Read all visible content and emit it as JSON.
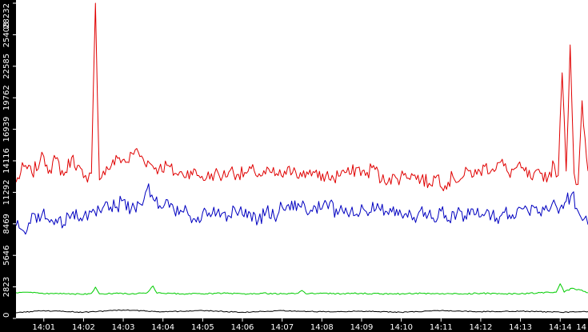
{
  "chart_data": {
    "type": "line",
    "title": "",
    "xlabel": "",
    "ylabel": "",
    "ylim": [
      0,
      28232
    ],
    "y_ticks": [
      0,
      2823,
      5646,
      8469,
      11292,
      14116,
      16939,
      19762,
      22585,
      25408,
      28232
    ],
    "x_ticks": [
      "14:01",
      "14:02",
      "14:03",
      "14:04",
      "14:05",
      "14:06",
      "14:07",
      "14:08",
      "14:09",
      "14:10",
      "14:11",
      "14:12",
      "14:13",
      "14:14",
      "14"
    ],
    "x_range_minutes": [
      0.3,
      14.7
    ],
    "grid": false,
    "legend": "none",
    "axis_background": "#000000",
    "axis_text_color": "#ffffff",
    "series": [
      {
        "color": "#e00000",
        "x": [
          0.3,
          0.5,
          0.7,
          0.9,
          1.0,
          1.15,
          1.3,
          1.5,
          1.7,
          1.85,
          2.0,
          2.1,
          2.2,
          2.3,
          2.4,
          2.5,
          2.7,
          2.9,
          3.1,
          3.3,
          3.5,
          3.7,
          3.9,
          4.1,
          4.3,
          4.5,
          4.7,
          4.9,
          5.1,
          5.3,
          5.5,
          5.7,
          5.9,
          6.1,
          6.3,
          6.5,
          6.7,
          6.9,
          7.1,
          7.3,
          7.5,
          7.7,
          7.9,
          8.1,
          8.3,
          8.5,
          8.7,
          8.9,
          9.1,
          9.3,
          9.5,
          9.7,
          9.9,
          10.1,
          10.3,
          10.5,
          10.7,
          10.9,
          11.1,
          11.3,
          11.5,
          11.7,
          11.9,
          12.1,
          12.3,
          12.5,
          12.7,
          12.9,
          13.1,
          13.3,
          13.5,
          13.7,
          13.85,
          13.95,
          14.05,
          14.15,
          14.25,
          14.35,
          14.45,
          14.55,
          14.7
        ],
        "values": [
          12200,
          13600,
          13000,
          14000,
          14500,
          13300,
          14300,
          12800,
          14400,
          13700,
          12600,
          12200,
          13000,
          28232,
          12400,
          13200,
          13700,
          14400,
          14000,
          15100,
          14300,
          13800,
          13400,
          13700,
          13000,
          12900,
          13200,
          12800,
          12600,
          13000,
          12700,
          13300,
          12900,
          13000,
          13200,
          12800,
          13100,
          12800,
          12900,
          13500,
          12700,
          13300,
          12600,
          12800,
          12500,
          13200,
          12900,
          13500,
          12800,
          13700,
          12300,
          12600,
          12500,
          13000,
          12800,
          12500,
          12100,
          12800,
          11900,
          12700,
          12500,
          13200,
          12900,
          13600,
          13400,
          14000,
          13000,
          13500,
          13200,
          12400,
          13000,
          12700,
          13800,
          12800,
          22000,
          13200,
          24500,
          13000,
          12000,
          19500,
          13200
        ]
      },
      {
        "color": "#0000c0",
        "x": [
          0.3,
          0.5,
          0.7,
          0.9,
          1.0,
          1.15,
          1.3,
          1.5,
          1.7,
          1.85,
          2.0,
          2.1,
          2.2,
          2.4,
          2.6,
          2.8,
          3.0,
          3.2,
          3.4,
          3.6,
          3.8,
          4.0,
          4.2,
          4.4,
          4.6,
          4.8,
          5.0,
          5.2,
          5.4,
          5.6,
          5.8,
          6.0,
          6.2,
          6.4,
          6.6,
          6.8,
          7.0,
          7.2,
          7.4,
          7.6,
          7.8,
          8.0,
          8.2,
          8.4,
          8.6,
          8.8,
          9.0,
          9.2,
          9.4,
          9.6,
          9.8,
          10.0,
          10.2,
          10.4,
          10.6,
          10.8,
          11.0,
          11.2,
          11.4,
          11.6,
          11.8,
          12.0,
          12.2,
          12.4,
          12.6,
          12.8,
          13.0,
          13.2,
          13.4,
          13.6,
          13.8,
          14.0,
          14.15,
          14.3,
          14.45,
          14.6,
          14.7
        ],
        "values": [
          8300,
          7800,
          9400,
          8700,
          9800,
          8600,
          8900,
          8400,
          9300,
          9000,
          9100,
          8800,
          9500,
          9700,
          10400,
          9900,
          10600,
          9800,
          10300,
          11600,
          10500,
          9900,
          10300,
          9300,
          9700,
          8900,
          9500,
          9100,
          9800,
          8700,
          9900,
          9300,
          9400,
          8800,
          9600,
          9100,
          10000,
          9700,
          10300,
          9600,
          10100,
          9800,
          10400,
          9300,
          9900,
          9200,
          10200,
          9500,
          10300,
          9600,
          10000,
          9300,
          9700,
          9100,
          9500,
          9000,
          9600,
          8800,
          9400,
          9200,
          9800,
          9100,
          9600,
          9000,
          9500,
          9300,
          9900,
          9500,
          10000,
          9700,
          10300,
          9900,
          10500,
          11200,
          9600,
          8900,
          8400
        ]
      },
      {
        "color": "#00cc00",
        "x": [
          0.3,
          0.6,
          1.0,
          1.5,
          2.0,
          2.2,
          2.3,
          2.4,
          2.8,
          3.2,
          3.6,
          3.75,
          3.85,
          4.0,
          4.5,
          5.0,
          5.5,
          6.0,
          6.5,
          7.0,
          7.4,
          7.5,
          7.6,
          8.0,
          8.5,
          9.0,
          9.5,
          10.0,
          10.5,
          11.0,
          11.5,
          12.0,
          12.5,
          13.0,
          13.5,
          13.9,
          14.0,
          14.1,
          14.3,
          14.5,
          14.7
        ],
        "values": [
          2300,
          2350,
          2200,
          2250,
          2150,
          2250,
          2800,
          2200,
          2250,
          2200,
          2300,
          2900,
          2250,
          2250,
          2200,
          2200,
          2250,
          2200,
          2250,
          2200,
          2250,
          2500,
          2200,
          2250,
          2200,
          2250,
          2200,
          2200,
          2250,
          2200,
          2200,
          2250,
          2200,
          2200,
          2300,
          2350,
          3100,
          2350,
          2700,
          2550,
          2300
        ]
      },
      {
        "color": "#000000",
        "x": [
          0.3,
          1.0,
          2.0,
          3.0,
          4.0,
          5.0,
          6.0,
          7.0,
          8.0,
          9.0,
          10.0,
          11.0,
          12.0,
          13.0,
          14.0,
          14.7
        ],
        "values": [
          500,
          700,
          550,
          750,
          600,
          700,
          550,
          700,
          600,
          650,
          550,
          700,
          600,
          650,
          550,
          600
        ]
      }
    ]
  }
}
